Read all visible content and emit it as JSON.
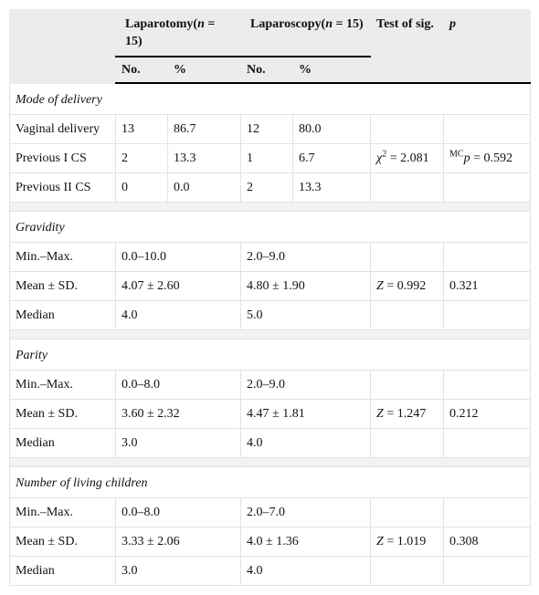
{
  "header": {
    "groups": [
      {
        "name": "Laparotomy(",
        "symbol": "n",
        "text": " = 15)"
      },
      {
        "name": "Laparoscopy(",
        "symbol": "n",
        "text": " = 15)"
      }
    ],
    "test": "Test of sig.",
    "p": "p",
    "sub": [
      "No.",
      "%",
      "No.",
      "%"
    ]
  },
  "sections": [
    {
      "title": "Mode of delivery",
      "rows": [
        {
          "label": "Vaginal delivery",
          "cells": [
            "13",
            "86.7",
            "12",
            "80.0"
          ]
        },
        {
          "label": "Previous I CS",
          "cells": [
            "2",
            "13.3",
            "1",
            "6.7"
          ],
          "test": {
            "symbol": "χ",
            "sup": "2",
            "text": " = 2.081"
          },
          "p": {
            "sup": "MC",
            "symbol": "p",
            "text": " = 0.592"
          }
        },
        {
          "label": "Previous II CS",
          "cells": [
            "0",
            "0.0",
            "2",
            "13.3"
          ]
        }
      ]
    },
    {
      "title": "Gravidity",
      "rows": [
        {
          "label": "Min.–Max.",
          "cells": [
            "0.0–10.0",
            "2.0–9.0"
          ]
        },
        {
          "label": "Mean ± SD.",
          "cells": [
            "4.07 ± 2.60",
            "4.80 ± 1.90"
          ],
          "test": {
            "symbol": "Z",
            "text": " = 0.992"
          },
          "p": "0.321"
        },
        {
          "label": "Median",
          "cells": [
            "4.0",
            "5.0"
          ]
        }
      ]
    },
    {
      "title": "Parity",
      "rows": [
        {
          "label": "Min.–Max.",
          "cells": [
            "0.0–8.0",
            "2.0–9.0"
          ]
        },
        {
          "label": "Mean ± SD.",
          "cells": [
            "3.60 ± 2.32",
            "4.47 ± 1.81"
          ],
          "test": {
            "symbol": "Z",
            "text": " = 1.247"
          },
          "p": "0.212"
        },
        {
          "label": "Median",
          "cells": [
            "3.0",
            "4.0"
          ]
        }
      ]
    },
    {
      "title": "Number of living children",
      "rows": [
        {
          "label": "Min.–Max.",
          "cells": [
            "0.0–8.0",
            "2.0–7.0"
          ]
        },
        {
          "label": "Mean ± SD.",
          "cells": [
            "3.33 ± 2.06",
            "4.0 ± 1.36"
          ],
          "test": {
            "symbol": "Z",
            "text": " = 1.019"
          },
          "p": "0.308"
        },
        {
          "label": "Median",
          "cells": [
            "3.0",
            "4.0"
          ]
        }
      ]
    }
  ]
}
